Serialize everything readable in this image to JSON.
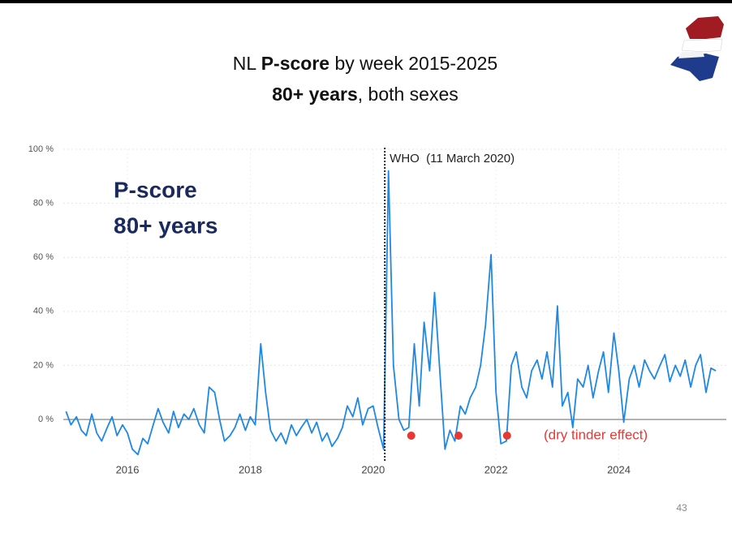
{
  "chart_data": {
    "type": "line",
    "title": {
      "prefix": "NL ",
      "bold": "P-score",
      "suffix": " by week 2015-2025"
    },
    "subtitle": {
      "bold": "80+ years",
      "suffix": ", both sexes"
    },
    "inset_label": [
      "P-score",
      "80+ years"
    ],
    "annotations": {
      "event": {
        "x": 2020.19,
        "label": "WHO  (11 March 2020)"
      },
      "dots": {
        "x": [
          2020.62,
          2021.39,
          2022.18
        ],
        "values": [
          -6,
          -6,
          -6
        ],
        "color": "#e53935"
      },
      "note": "(dry tinder effect)"
    },
    "page_number": "43",
    "x": [
      2015,
      2015.08,
      2015.17,
      2015.25,
      2015.33,
      2015.42,
      2015.5,
      2015.58,
      2015.67,
      2015.75,
      2015.83,
      2015.92,
      2016,
      2016.08,
      2016.17,
      2016.25,
      2016.33,
      2016.42,
      2016.5,
      2016.58,
      2016.67,
      2016.75,
      2016.83,
      2016.92,
      2017,
      2017.08,
      2017.17,
      2017.25,
      2017.33,
      2017.42,
      2017.5,
      2017.58,
      2017.67,
      2017.75,
      2017.83,
      2017.92,
      2018,
      2018.08,
      2018.17,
      2018.25,
      2018.33,
      2018.42,
      2018.5,
      2018.58,
      2018.67,
      2018.75,
      2018.83,
      2018.92,
      2019,
      2019.08,
      2019.17,
      2019.25,
      2019.33,
      2019.42,
      2019.5,
      2019.58,
      2019.67,
      2019.75,
      2019.83,
      2019.92,
      2020,
      2020.08,
      2020.17,
      2020.25,
      2020.33,
      2020.42,
      2020.5,
      2020.58,
      2020.67,
      2020.75,
      2020.83,
      2020.92,
      2021,
      2021.08,
      2021.17,
      2021.25,
      2021.33,
      2021.42,
      2021.5,
      2021.58,
      2021.67,
      2021.75,
      2021.83,
      2021.92,
      2022,
      2022.08,
      2022.17,
      2022.25,
      2022.33,
      2022.42,
      2022.5,
      2022.58,
      2022.67,
      2022.75,
      2022.83,
      2022.92,
      2023,
      2023.08,
      2023.17,
      2023.25,
      2023.33,
      2023.42,
      2023.5,
      2023.58,
      2023.67,
      2023.75,
      2023.83,
      2023.92,
      2024,
      2024.08,
      2024.17,
      2024.25,
      2024.33,
      2024.42,
      2024.5,
      2024.58,
      2024.67,
      2024.75,
      2024.83,
      2024.92,
      2025,
      2025.08,
      2025.17,
      2025.25,
      2025.33,
      2025.42,
      2025.5,
      2025.58
    ],
    "series": [
      {
        "color": "#1e88e5",
        "values": [
          3,
          -2,
          1,
          -4,
          -6,
          2,
          -5,
          -8,
          -3,
          1,
          -6,
          -2,
          -5,
          -11,
          -13,
          -7,
          -9,
          -2,
          4,
          -1,
          -5,
          3,
          -3,
          2,
          0,
          4,
          -2,
          -5,
          12,
          10,
          0,
          -8,
          -6,
          -3,
          2,
          -4,
          1,
          -2,
          28,
          10,
          -4,
          -8,
          -5,
          -9,
          -2,
          -6,
          -3,
          0,
          -5,
          -1,
          -8,
          -5,
          -10,
          -7,
          -3,
          5,
          1,
          8,
          -2,
          4,
          5,
          -3,
          -11,
          92,
          20,
          0,
          -4,
          -3,
          28,
          5,
          36,
          18,
          47,
          20,
          -11,
          -4,
          -8,
          5,
          2,
          8,
          12,
          20,
          35,
          61,
          10,
          -9,
          -8,
          20,
          25,
          12,
          8,
          18,
          22,
          15,
          25,
          12,
          42,
          5,
          10,
          -3,
          15,
          12,
          20,
          8,
          18,
          25,
          10,
          32,
          18,
          -1,
          15,
          20,
          12,
          22,
          18,
          15,
          20,
          24,
          14,
          20,
          16,
          22,
          12,
          20,
          24,
          10,
          19,
          18
        ]
      }
    ],
    "xlim": [
      2014.85,
      2025.75
    ],
    "xticks": [
      2016,
      2018,
      2020,
      2022,
      2024
    ],
    "ylim": [
      -15,
      100
    ],
    "yticks": [
      {
        "value": 0,
        "label": "0 %"
      },
      {
        "value": 20,
        "label": "20 %"
      },
      {
        "value": 40,
        "label": "40 %"
      },
      {
        "value": 60,
        "label": "60 %"
      },
      {
        "value": 80,
        "label": "80 %"
      },
      {
        "value": 100,
        "label": "100 %"
      }
    ],
    "grid": true
  }
}
